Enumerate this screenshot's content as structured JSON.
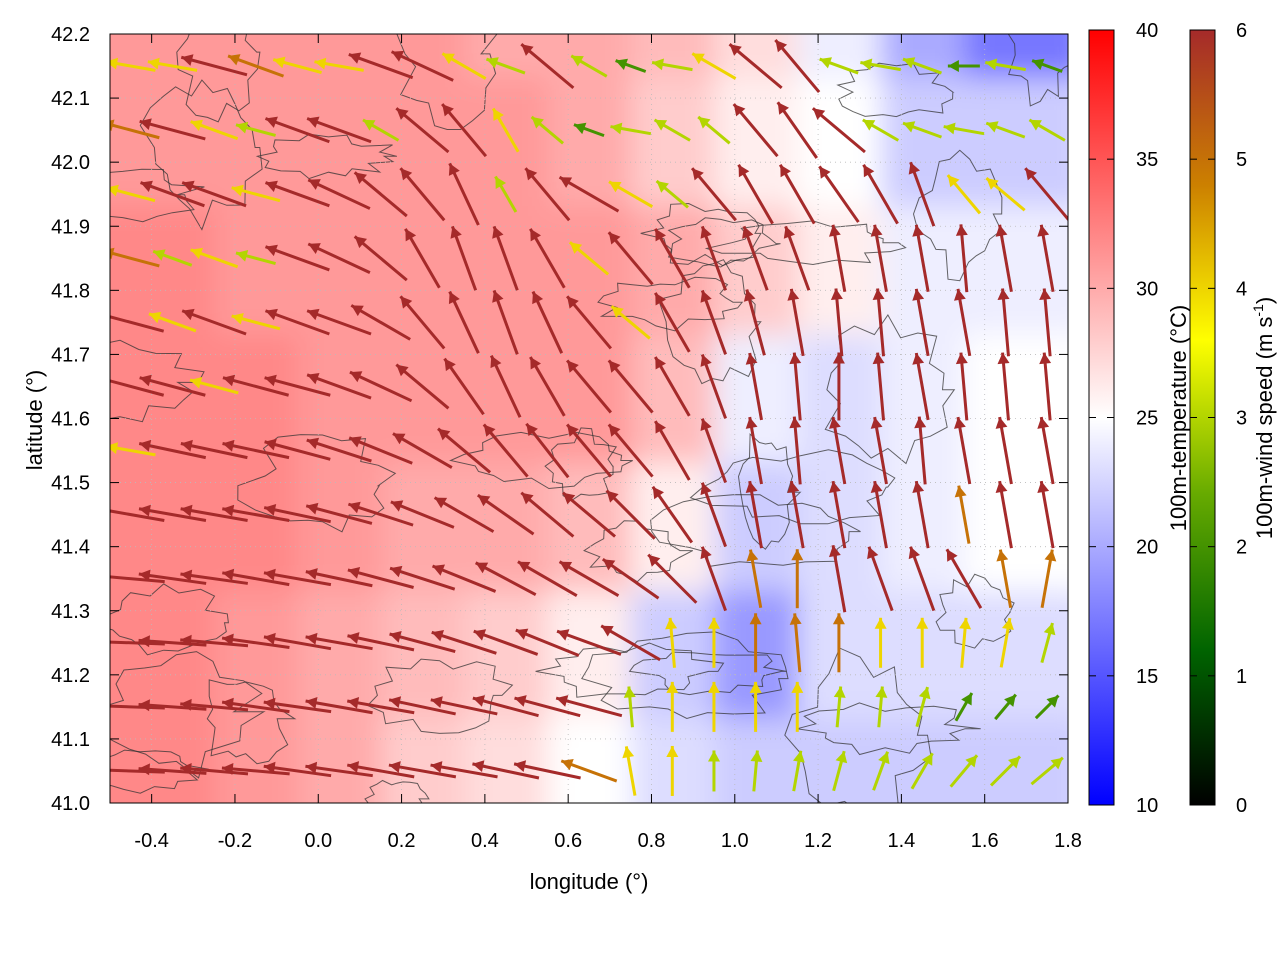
{
  "chart_data": {
    "type": "heatmap",
    "title": "",
    "xlabel": "longitude (°)",
    "ylabel": "latitude (°)",
    "xlim": [
      -0.5,
      1.8
    ],
    "ylim": [
      41.0,
      42.2
    ],
    "x_ticks": [
      {
        "value": -0.4,
        "label": "-0.4"
      },
      {
        "value": -0.2,
        "label": "-0.2"
      },
      {
        "value": 0.0,
        "label": "0.0"
      },
      {
        "value": 0.2,
        "label": "0.2"
      },
      {
        "value": 0.4,
        "label": "0.4"
      },
      {
        "value": 0.6,
        "label": "0.6"
      },
      {
        "value": 0.8,
        "label": "0.8"
      },
      {
        "value": 1.0,
        "label": "1.0"
      },
      {
        "value": 1.2,
        "label": "1.2"
      },
      {
        "value": 1.4,
        "label": "1.4"
      },
      {
        "value": 1.6,
        "label": "1.6"
      },
      {
        "value": 1.8,
        "label": "1.8"
      }
    ],
    "y_ticks": [
      {
        "value": 41.0,
        "label": "41.0"
      },
      {
        "value": 41.1,
        "label": "41.1"
      },
      {
        "value": 41.2,
        "label": "41.2"
      },
      {
        "value": 41.3,
        "label": "41.3"
      },
      {
        "value": 41.4,
        "label": "41.4"
      },
      {
        "value": 41.5,
        "label": "41.5"
      },
      {
        "value": 41.6,
        "label": "41.6"
      },
      {
        "value": 41.7,
        "label": "41.7"
      },
      {
        "value": 41.8,
        "label": "41.8"
      },
      {
        "value": 41.9,
        "label": "41.9"
      },
      {
        "value": 42.0,
        "label": "42.0"
      },
      {
        "value": 42.1,
        "label": "42.1"
      },
      {
        "value": 42.2,
        "label": "42.2"
      }
    ],
    "grid": true,
    "temperature_colorbar": {
      "label": "100m-temperature (°C)",
      "range": [
        10,
        40
      ],
      "ticks": [
        {
          "value": 10,
          "label": "10"
        },
        {
          "value": 15,
          "label": "15"
        },
        {
          "value": 20,
          "label": "20"
        },
        {
          "value": 25,
          "label": "25"
        },
        {
          "value": 30,
          "label": "30"
        },
        {
          "value": 35,
          "label": "35"
        },
        {
          "value": 40,
          "label": "40"
        }
      ],
      "colors": [
        "#0000ff",
        "#ffffff",
        "#ff0000"
      ]
    },
    "wind_colorbar": {
      "label_main": "100m-wind speed (m s",
      "label_sup": "-1",
      "label_end": ")",
      "range": [
        0,
        6
      ],
      "ticks": [
        {
          "value": 0,
          "label": "0"
        },
        {
          "value": 1,
          "label": "1"
        },
        {
          "value": 2,
          "label": "2"
        },
        {
          "value": 3,
          "label": "3"
        },
        {
          "value": 4,
          "label": "4"
        },
        {
          "value": 5,
          "label": "5"
        },
        {
          "value": 6,
          "label": "6"
        }
      ],
      "colors": [
        "#000000",
        "#006400",
        "#66aa00",
        "#ffff00",
        "#cc8000",
        "#a52a2a"
      ]
    },
    "temperature_field": {
      "lon": [
        -0.5,
        -0.3,
        -0.1,
        0.1,
        0.3,
        0.5,
        0.7,
        0.9,
        1.1,
        1.3,
        1.5,
        1.7
      ],
      "lat": [
        42.2,
        42.0,
        41.8,
        41.6,
        41.4,
        41.2,
        41.0
      ],
      "values": [
        [
          31,
          31,
          31,
          31,
          31,
          30,
          30,
          29,
          27,
          24,
          20,
          17
        ],
        [
          31,
          31,
          31,
          31,
          31,
          31,
          30,
          28,
          26,
          25,
          22,
          22
        ],
        [
          32,
          32,
          31,
          31,
          31,
          31,
          31,
          30,
          28,
          26,
          24,
          24
        ],
        [
          32,
          32,
          32,
          31,
          31,
          31,
          31,
          29,
          24,
          23,
          24,
          25
        ],
        [
          32,
          32,
          32,
          31,
          30,
          30,
          29,
          26,
          22,
          23,
          24,
          25
        ],
        [
          32,
          32,
          31,
          30,
          29,
          28,
          26,
          22,
          19,
          23,
          23,
          23
        ],
        [
          32,
          32,
          31,
          30,
          28,
          27,
          25,
          23,
          22,
          22,
          22,
          22
        ]
      ]
    },
    "wind_field": {
      "lon": [
        -0.45,
        -0.35,
        -0.25,
        -0.15,
        -0.05,
        0.05,
        0.15,
        0.25,
        0.35,
        0.45,
        0.55,
        0.65,
        0.75,
        0.85,
        0.95,
        1.05,
        1.15,
        1.25,
        1.35,
        1.45,
        1.55,
        1.65,
        1.75
      ],
      "lat": [
        42.15,
        42.05,
        41.95,
        41.85,
        41.75,
        41.65,
        41.55,
        41.45,
        41.35,
        41.25,
        41.15,
        41.05
      ],
      "speed": [
        [
          4,
          4,
          6,
          5,
          4,
          4,
          6,
          6,
          4,
          3,
          6,
          3,
          2,
          3,
          4,
          6,
          6,
          3,
          3,
          3,
          2,
          3,
          2
        ],
        [
          5,
          6,
          4,
          3,
          6,
          6,
          3,
          6,
          6,
          4,
          3,
          2,
          3,
          3,
          3,
          6,
          6,
          6,
          3,
          3,
          3,
          3,
          3
        ],
        [
          4,
          6,
          6,
          4,
          6,
          6,
          6,
          6,
          6,
          3,
          6,
          6,
          4,
          3,
          6,
          6,
          6,
          6,
          6,
          6,
          4,
          4,
          6
        ],
        [
          5,
          3,
          4,
          3,
          6,
          6,
          6,
          6,
          6,
          6,
          6,
          4,
          6,
          6,
          6,
          6,
          6,
          6,
          6,
          6,
          6,
          6,
          6
        ],
        [
          6,
          4,
          6,
          4,
          6,
          6,
          6,
          6,
          6,
          6,
          6,
          6,
          4,
          6,
          6,
          6,
          6,
          6,
          6,
          6,
          6,
          6,
          6
        ],
        [
          6,
          6,
          4,
          6,
          6,
          6,
          6,
          6,
          6,
          6,
          6,
          6,
          6,
          6,
          6,
          6,
          6,
          6,
          6,
          6,
          6,
          6,
          6
        ],
        [
          4,
          6,
          6,
          6,
          6,
          6,
          6,
          6,
          6,
          6,
          6,
          6,
          6,
          6,
          6,
          6,
          6,
          6,
          6,
          6,
          6,
          6,
          6
        ],
        [
          6,
          6,
          6,
          6,
          6,
          6,
          6,
          6,
          6,
          6,
          6,
          6,
          6,
          6,
          6,
          6,
          6,
          6,
          6,
          6,
          5,
          6,
          6
        ],
        [
          6,
          6,
          6,
          6,
          6,
          6,
          6,
          6,
          6,
          6,
          6,
          6,
          6,
          6,
          6,
          5,
          5,
          6,
          6,
          6,
          6,
          5,
          5
        ],
        [
          6,
          6,
          6,
          6,
          6,
          6,
          6,
          6,
          6,
          6,
          6,
          6,
          6,
          4,
          4,
          5,
          5,
          5,
          4,
          4,
          4,
          4,
          3
        ],
        [
          6,
          6,
          6,
          6,
          6,
          6,
          6,
          6,
          6,
          6,
          6,
          6,
          3,
          4,
          4,
          4,
          4,
          3,
          3,
          3,
          2,
          2,
          2
        ],
        [
          6,
          6,
          6,
          6,
          6,
          6,
          6,
          6,
          6,
          6,
          6,
          5,
          4,
          4,
          3,
          3,
          3,
          3,
          3,
          3,
          3,
          3,
          3
        ]
      ],
      "direction_deg": [
        [
          170,
          170,
          165,
          160,
          165,
          170,
          160,
          155,
          150,
          160,
          140,
          150,
          160,
          170,
          150,
          140,
          130,
          160,
          170,
          160,
          180,
          170,
          160
        ],
        [
          165,
          165,
          160,
          165,
          160,
          160,
          150,
          140,
          130,
          120,
          140,
          160,
          170,
          150,
          140,
          130,
          125,
          140,
          150,
          160,
          170,
          160,
          150
        ],
        [
          165,
          160,
          160,
          165,
          160,
          155,
          140,
          130,
          115,
          120,
          130,
          150,
          150,
          140,
          130,
          120,
          120,
          125,
          120,
          110,
          130,
          140,
          130
        ],
        [
          165,
          160,
          160,
          165,
          160,
          155,
          140,
          120,
          110,
          110,
          120,
          140,
          130,
          120,
          110,
          110,
          110,
          100,
          100,
          100,
          95,
          100,
          100
        ],
        [
          165,
          160,
          160,
          165,
          160,
          160,
          150,
          130,
          115,
          110,
          115,
          130,
          140,
          120,
          110,
          105,
          100,
          95,
          95,
          100,
          100,
          95,
          95
        ],
        [
          165,
          165,
          165,
          165,
          165,
          160,
          155,
          140,
          125,
          115,
          120,
          130,
          130,
          120,
          110,
          100,
          95,
          90,
          95,
          100,
          95,
          95,
          95
        ],
        [
          170,
          168,
          168,
          168,
          165,
          162,
          158,
          150,
          140,
          130,
          128,
          130,
          130,
          120,
          110,
          100,
          95,
          100,
          100,
          95,
          100,
          100,
          100
        ],
        [
          170,
          170,
          170,
          170,
          168,
          165,
          162,
          158,
          150,
          145,
          140,
          140,
          135,
          125,
          110,
          100,
          100,
          100,
          100,
          100,
          100,
          100,
          100
        ],
        [
          175,
          172,
          172,
          170,
          170,
          168,
          165,
          162,
          158,
          152,
          150,
          150,
          145,
          135,
          110,
          100,
          90,
          100,
          110,
          110,
          120,
          100,
          80
        ],
        [
          178,
          176,
          175,
          172,
          170,
          170,
          168,
          165,
          162,
          160,
          158,
          160,
          150,
          95,
          90,
          90,
          95,
          90,
          90,
          90,
          85,
          80,
          75
        ],
        [
          178,
          176,
          175,
          172,
          172,
          170,
          170,
          168,
          168,
          165,
          165,
          165,
          95,
          90,
          90,
          90,
          90,
          85,
          85,
          75,
          60,
          50,
          45
        ],
        [
          178,
          176,
          175,
          175,
          172,
          172,
          170,
          170,
          170,
          168,
          168,
          160,
          100,
          90,
          90,
          85,
          80,
          75,
          70,
          60,
          50,
          45,
          40
        ]
      ]
    }
  }
}
